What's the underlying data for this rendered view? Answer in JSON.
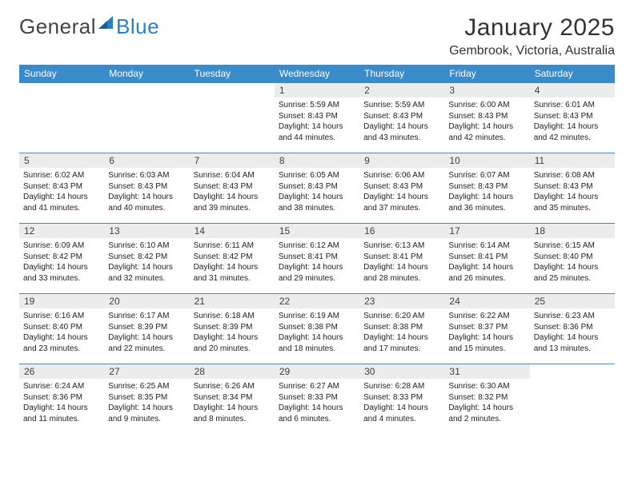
{
  "brand": {
    "part1": "General",
    "part2": "Blue"
  },
  "title": "January 2025",
  "location": "Gembrook, Victoria, Australia",
  "colors": {
    "header_bg": "#3a8bc9",
    "header_text": "#ffffff",
    "daynum_bg": "#ececec",
    "border": "#3a8bc9",
    "text": "#333333"
  },
  "weekdays": [
    "Sunday",
    "Monday",
    "Tuesday",
    "Wednesday",
    "Thursday",
    "Friday",
    "Saturday"
  ],
  "weeks": [
    [
      {
        "n": "",
        "sr": "",
        "ss": "",
        "dl": ""
      },
      {
        "n": "",
        "sr": "",
        "ss": "",
        "dl": ""
      },
      {
        "n": "",
        "sr": "",
        "ss": "",
        "dl": ""
      },
      {
        "n": "1",
        "sr": "Sunrise: 5:59 AM",
        "ss": "Sunset: 8:43 PM",
        "dl": "Daylight: 14 hours and 44 minutes."
      },
      {
        "n": "2",
        "sr": "Sunrise: 5:59 AM",
        "ss": "Sunset: 8:43 PM",
        "dl": "Daylight: 14 hours and 43 minutes."
      },
      {
        "n": "3",
        "sr": "Sunrise: 6:00 AM",
        "ss": "Sunset: 8:43 PM",
        "dl": "Daylight: 14 hours and 42 minutes."
      },
      {
        "n": "4",
        "sr": "Sunrise: 6:01 AM",
        "ss": "Sunset: 8:43 PM",
        "dl": "Daylight: 14 hours and 42 minutes."
      }
    ],
    [
      {
        "n": "5",
        "sr": "Sunrise: 6:02 AM",
        "ss": "Sunset: 8:43 PM",
        "dl": "Daylight: 14 hours and 41 minutes."
      },
      {
        "n": "6",
        "sr": "Sunrise: 6:03 AM",
        "ss": "Sunset: 8:43 PM",
        "dl": "Daylight: 14 hours and 40 minutes."
      },
      {
        "n": "7",
        "sr": "Sunrise: 6:04 AM",
        "ss": "Sunset: 8:43 PM",
        "dl": "Daylight: 14 hours and 39 minutes."
      },
      {
        "n": "8",
        "sr": "Sunrise: 6:05 AM",
        "ss": "Sunset: 8:43 PM",
        "dl": "Daylight: 14 hours and 38 minutes."
      },
      {
        "n": "9",
        "sr": "Sunrise: 6:06 AM",
        "ss": "Sunset: 8:43 PM",
        "dl": "Daylight: 14 hours and 37 minutes."
      },
      {
        "n": "10",
        "sr": "Sunrise: 6:07 AM",
        "ss": "Sunset: 8:43 PM",
        "dl": "Daylight: 14 hours and 36 minutes."
      },
      {
        "n": "11",
        "sr": "Sunrise: 6:08 AM",
        "ss": "Sunset: 8:43 PM",
        "dl": "Daylight: 14 hours and 35 minutes."
      }
    ],
    [
      {
        "n": "12",
        "sr": "Sunrise: 6:09 AM",
        "ss": "Sunset: 8:42 PM",
        "dl": "Daylight: 14 hours and 33 minutes."
      },
      {
        "n": "13",
        "sr": "Sunrise: 6:10 AM",
        "ss": "Sunset: 8:42 PM",
        "dl": "Daylight: 14 hours and 32 minutes."
      },
      {
        "n": "14",
        "sr": "Sunrise: 6:11 AM",
        "ss": "Sunset: 8:42 PM",
        "dl": "Daylight: 14 hours and 31 minutes."
      },
      {
        "n": "15",
        "sr": "Sunrise: 6:12 AM",
        "ss": "Sunset: 8:41 PM",
        "dl": "Daylight: 14 hours and 29 minutes."
      },
      {
        "n": "16",
        "sr": "Sunrise: 6:13 AM",
        "ss": "Sunset: 8:41 PM",
        "dl": "Daylight: 14 hours and 28 minutes."
      },
      {
        "n": "17",
        "sr": "Sunrise: 6:14 AM",
        "ss": "Sunset: 8:41 PM",
        "dl": "Daylight: 14 hours and 26 minutes."
      },
      {
        "n": "18",
        "sr": "Sunrise: 6:15 AM",
        "ss": "Sunset: 8:40 PM",
        "dl": "Daylight: 14 hours and 25 minutes."
      }
    ],
    [
      {
        "n": "19",
        "sr": "Sunrise: 6:16 AM",
        "ss": "Sunset: 8:40 PM",
        "dl": "Daylight: 14 hours and 23 minutes."
      },
      {
        "n": "20",
        "sr": "Sunrise: 6:17 AM",
        "ss": "Sunset: 8:39 PM",
        "dl": "Daylight: 14 hours and 22 minutes."
      },
      {
        "n": "21",
        "sr": "Sunrise: 6:18 AM",
        "ss": "Sunset: 8:39 PM",
        "dl": "Daylight: 14 hours and 20 minutes."
      },
      {
        "n": "22",
        "sr": "Sunrise: 6:19 AM",
        "ss": "Sunset: 8:38 PM",
        "dl": "Daylight: 14 hours and 18 minutes."
      },
      {
        "n": "23",
        "sr": "Sunrise: 6:20 AM",
        "ss": "Sunset: 8:38 PM",
        "dl": "Daylight: 14 hours and 17 minutes."
      },
      {
        "n": "24",
        "sr": "Sunrise: 6:22 AM",
        "ss": "Sunset: 8:37 PM",
        "dl": "Daylight: 14 hours and 15 minutes."
      },
      {
        "n": "25",
        "sr": "Sunrise: 6:23 AM",
        "ss": "Sunset: 8:36 PM",
        "dl": "Daylight: 14 hours and 13 minutes."
      }
    ],
    [
      {
        "n": "26",
        "sr": "Sunrise: 6:24 AM",
        "ss": "Sunset: 8:36 PM",
        "dl": "Daylight: 14 hours and 11 minutes."
      },
      {
        "n": "27",
        "sr": "Sunrise: 6:25 AM",
        "ss": "Sunset: 8:35 PM",
        "dl": "Daylight: 14 hours and 9 minutes."
      },
      {
        "n": "28",
        "sr": "Sunrise: 6:26 AM",
        "ss": "Sunset: 8:34 PM",
        "dl": "Daylight: 14 hours and 8 minutes."
      },
      {
        "n": "29",
        "sr": "Sunrise: 6:27 AM",
        "ss": "Sunset: 8:33 PM",
        "dl": "Daylight: 14 hours and 6 minutes."
      },
      {
        "n": "30",
        "sr": "Sunrise: 6:28 AM",
        "ss": "Sunset: 8:33 PM",
        "dl": "Daylight: 14 hours and 4 minutes."
      },
      {
        "n": "31",
        "sr": "Sunrise: 6:30 AM",
        "ss": "Sunset: 8:32 PM",
        "dl": "Daylight: 14 hours and 2 minutes."
      },
      {
        "n": "",
        "sr": "",
        "ss": "",
        "dl": ""
      }
    ]
  ]
}
